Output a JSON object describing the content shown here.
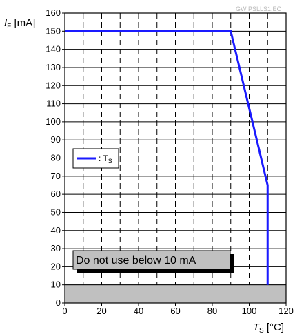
{
  "chart_data": {
    "type": "line",
    "watermark": "GW PSLLS1.EC",
    "ylabel": {
      "var": "I",
      "sub": "F",
      "unit": " [mA]"
    },
    "xlabel": {
      "var": "T",
      "sub": "S",
      "unit": " [°C]"
    },
    "xlim": [
      0,
      120
    ],
    "ylim": [
      0,
      160
    ],
    "xticks": [
      0,
      20,
      40,
      60,
      80,
      100,
      120
    ],
    "yticks": [
      0,
      10,
      20,
      30,
      40,
      50,
      60,
      70,
      80,
      90,
      100,
      110,
      120,
      130,
      140,
      150,
      160
    ],
    "vertical_gridlines": [
      10,
      20,
      30,
      40,
      50,
      60,
      70,
      80,
      90,
      100,
      110
    ],
    "grid": true,
    "series": [
      {
        "name": "T",
        "legend_prefix": ": ",
        "legend_sub": "S",
        "color": "#1a1aff",
        "x": [
          0,
          90,
          110,
          110
        ],
        "y": [
          150,
          150,
          65,
          10
        ]
      }
    ],
    "legend_placement": "left, around 75 mA",
    "shaded_region": {
      "y_from": 0,
      "y_to": 10,
      "color": "#c0c0c0"
    },
    "annotation": "Do not use below 10 mA"
  }
}
